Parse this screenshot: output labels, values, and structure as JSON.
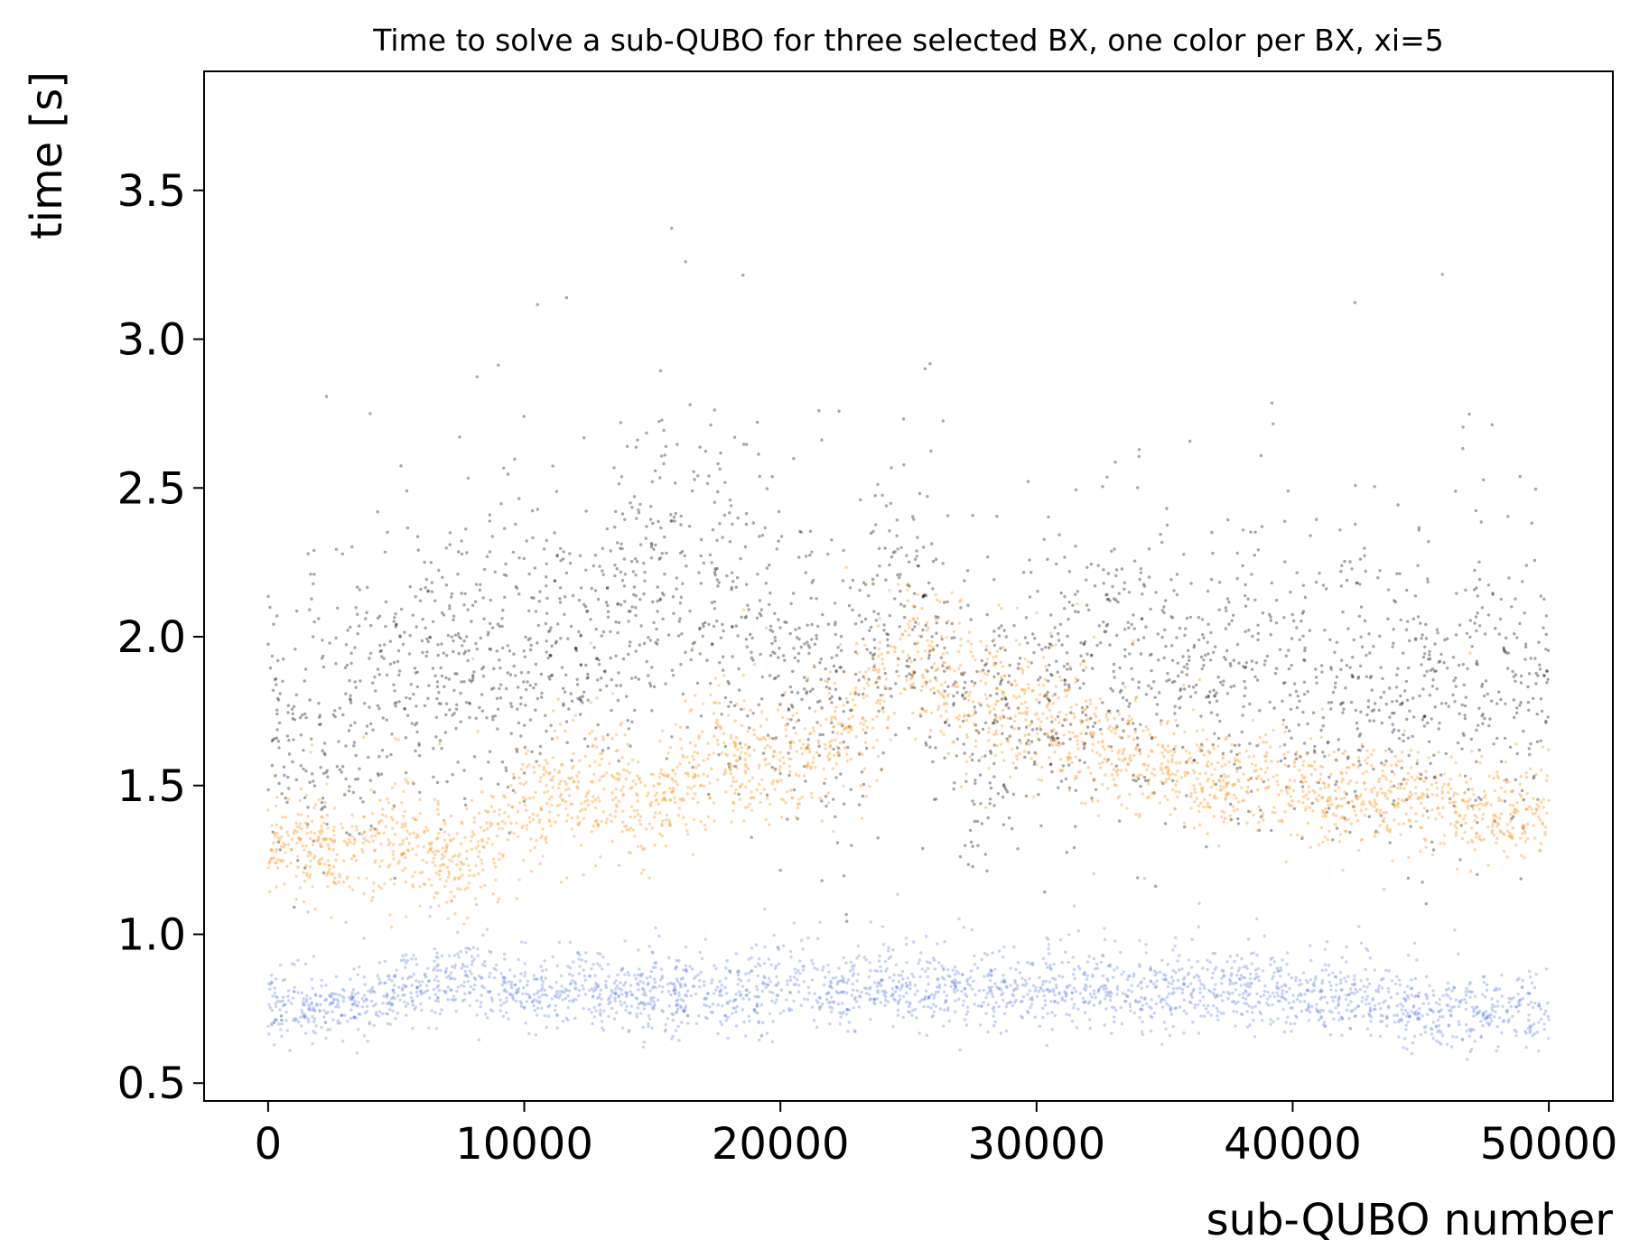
{
  "chart_data": {
    "type": "scatter",
    "title": "Time to solve a sub-QUBO for three selected BX, one color per BX, xi=5",
    "xlabel": "sub-QUBO number",
    "ylabel": "time [s]",
    "xlim": [
      -2500,
      52500
    ],
    "ylim": [
      0.44,
      3.9
    ],
    "x_ticks": [
      0,
      10000,
      20000,
      30000,
      40000,
      50000
    ],
    "x_tick_labels": [
      "0",
      "10000",
      "20000",
      "30000",
      "40000",
      "50000"
    ],
    "y_ticks": [
      0.5,
      1.0,
      1.5,
      2.0,
      2.5,
      3.0,
      3.5
    ],
    "y_tick_labels": [
      "0.5",
      "1.0",
      "1.5",
      "2.0",
      "2.5",
      "3.0",
      "3.5"
    ],
    "grid": false,
    "legend": "none",
    "series": [
      {
        "color": "#000000",
        "opacity": 0.35,
        "x": [
          0,
          2500,
          5000,
          7500,
          10000,
          12500,
          15000,
          17500,
          20000,
          22500,
          25000,
          27500,
          30000,
          32500,
          35000,
          37500,
          40000,
          42500,
          45000,
          47500,
          50000
        ],
        "center": [
          1.62,
          1.7,
          1.85,
          1.95,
          1.95,
          2.0,
          2.15,
          2.2,
          1.9,
          1.8,
          2.15,
          1.7,
          1.75,
          1.9,
          1.85,
          1.85,
          1.85,
          1.85,
          1.8,
          1.85,
          1.85
        ],
        "spread": [
          0.25,
          0.35,
          0.35,
          0.35,
          0.35,
          0.35,
          0.4,
          0.4,
          0.35,
          0.35,
          0.35,
          0.35,
          0.35,
          0.35,
          0.35,
          0.35,
          0.35,
          0.35,
          0.35,
          0.4,
          0.35
        ]
      },
      {
        "color": "#ff8c00",
        "opacity": 0.35,
        "x": [
          0,
          2500,
          5000,
          7500,
          10000,
          12500,
          15000,
          17500,
          20000,
          22500,
          25000,
          27500,
          30000,
          32500,
          35000,
          37500,
          40000,
          42500,
          45000,
          47500,
          50000
        ],
        "center": [
          1.32,
          1.28,
          1.3,
          1.22,
          1.45,
          1.48,
          1.42,
          1.62,
          1.55,
          1.68,
          1.92,
          1.8,
          1.75,
          1.62,
          1.55,
          1.52,
          1.5,
          1.45,
          1.45,
          1.4,
          1.42
        ],
        "spread": [
          0.12,
          0.12,
          0.13,
          0.13,
          0.15,
          0.15,
          0.15,
          0.15,
          0.13,
          0.15,
          0.18,
          0.18,
          0.18,
          0.15,
          0.12,
          0.12,
          0.12,
          0.12,
          0.12,
          0.12,
          0.12
        ]
      },
      {
        "color": "#4169e1",
        "opacity": 0.3,
        "x": [
          0,
          2500,
          5000,
          7500,
          10000,
          12500,
          15000,
          17500,
          20000,
          22500,
          25000,
          27500,
          30000,
          32500,
          35000,
          37500,
          40000,
          42500,
          45000,
          47500,
          50000
        ],
        "center": [
          0.76,
          0.75,
          0.8,
          0.86,
          0.8,
          0.82,
          0.8,
          0.8,
          0.82,
          0.82,
          0.82,
          0.82,
          0.82,
          0.82,
          0.82,
          0.82,
          0.8,
          0.8,
          0.74,
          0.74,
          0.74
        ],
        "spread": [
          0.08,
          0.08,
          0.09,
          0.1,
          0.09,
          0.09,
          0.09,
          0.09,
          0.12,
          0.09,
          0.09,
          0.09,
          0.09,
          0.09,
          0.09,
          0.09,
          0.09,
          0.09,
          0.08,
          0.08,
          0.08
        ]
      }
    ]
  }
}
